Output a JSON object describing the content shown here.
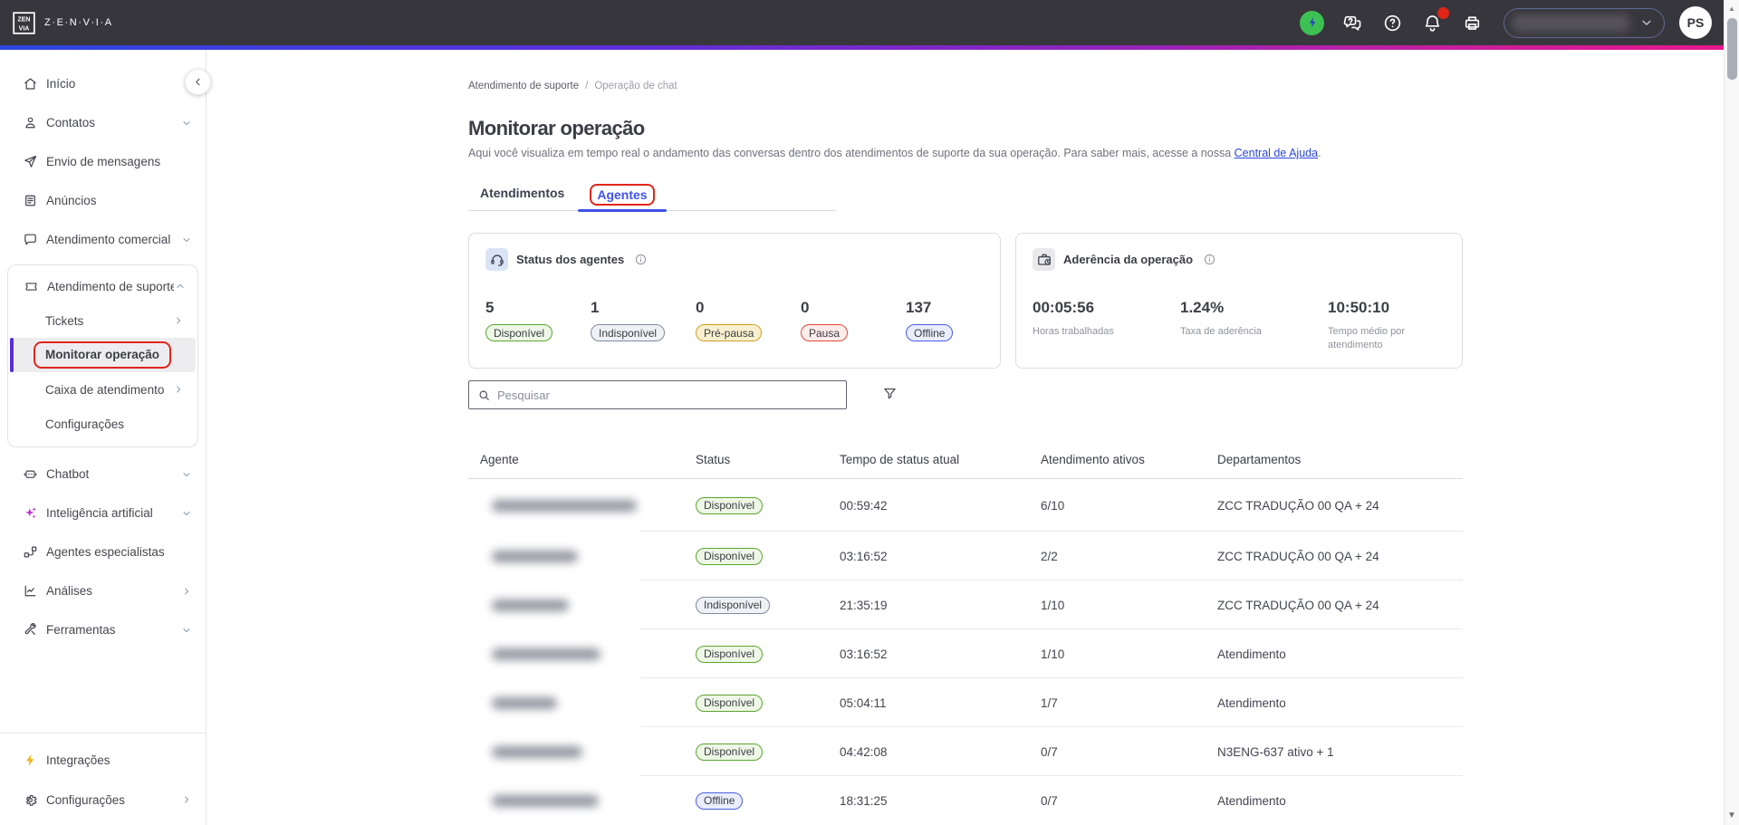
{
  "colors": {
    "accent_blue": "#4053e8",
    "annotation_red": "#e0261a",
    "header_bg": "#38363d",
    "active_item_bar": "#5b2fd8",
    "gradient": [
      "#2b46df",
      "#5b2fd8",
      "#8d24bf",
      "#c31e9e",
      "#e8188a"
    ],
    "status_circle_green": "#3ec153",
    "pill_variants": {
      "available": {
        "border": "#5aa630",
        "bg": "#eef7e7"
      },
      "unavailable": {
        "border": "#7e8aa0",
        "bg": "#eff1f5"
      },
      "prepause": {
        "border": "#d19f27",
        "bg": "#faf0cf"
      },
      "pause": {
        "border": "#e04b3c",
        "bg": "#fdecea"
      },
      "offline": {
        "border": "#4a5fe0",
        "bg": "#e9edfc"
      }
    }
  },
  "header": {
    "logo_text": "Z·E·N·V·I·A",
    "avatar_initials": "PS",
    "account_selector_redacted": true
  },
  "sidebar": {
    "items": [
      {
        "key": "inicio",
        "label": "Início",
        "icon": "home"
      },
      {
        "key": "contatos",
        "label": "Contatos",
        "icon": "contacts",
        "chevron": "down"
      },
      {
        "key": "envio-de-mensagens",
        "label": "Envio de mensagens",
        "icon": "send"
      },
      {
        "key": "anuncios",
        "label": "Anúncios",
        "icon": "announcements"
      },
      {
        "key": "atendimento-comercial",
        "label": "Atendimento comercial",
        "icon": "chat",
        "chevron": "down"
      },
      {
        "key": "atendimento-de-suporte",
        "label": "Atendimento de suporte",
        "icon": "ticket",
        "chevron": "up",
        "expanded": true,
        "children": [
          {
            "key": "tickets",
            "label": "Tickets",
            "chevron": "right"
          },
          {
            "key": "monitorar-operacao",
            "label": "Monitorar operação",
            "active": true,
            "annotated": true
          },
          {
            "key": "caixa-de-atendimento",
            "label": "Caixa de atendimento",
            "chevron": "right"
          },
          {
            "key": "configuracoes-suporte",
            "label": "Configurações"
          }
        ]
      },
      {
        "key": "chatbot",
        "label": "Chatbot",
        "icon": "chatbot",
        "chevron": "down"
      },
      {
        "key": "inteligencia-artificial",
        "label": "Inteligência artificial",
        "icon": "sparkles",
        "icon_color": "magenta",
        "chevron": "down"
      },
      {
        "key": "agentes-especialistas",
        "label": "Agentes especialistas",
        "icon": "flow"
      },
      {
        "key": "analises",
        "label": "Análises",
        "icon": "analytics",
        "chevron": "right"
      },
      {
        "key": "ferramentas",
        "label": "Ferramentas",
        "icon": "tools",
        "chevron": "down"
      }
    ],
    "footer_items": [
      {
        "key": "integracoes",
        "label": "Integrações",
        "icon": "bolt",
        "icon_color": "yellow"
      },
      {
        "key": "configuracoes",
        "label": "Configurações",
        "icon": "gear",
        "chevron": "right"
      }
    ]
  },
  "breadcrumb": {
    "items": [
      "Atendimento de suporte",
      "Operação de chat"
    ],
    "separator": "/"
  },
  "page": {
    "title": "Monitorar operação",
    "subtitle_before_link": "Aqui você visualiza em tempo real o andamento das conversas dentro dos atendimentos de suporte da sua operação. Para saber mais, acesse a nossa ",
    "subtitle_link": "Central de Ajuda",
    "subtitle_after_link": "."
  },
  "tabs": [
    {
      "label": "Atendimentos",
      "active": false
    },
    {
      "label": "Agentes",
      "active": true,
      "annotated": true
    }
  ],
  "agent_status_card": {
    "title": "Status dos agentes",
    "stats": [
      {
        "value": "5",
        "label": "Disponível",
        "variant": "available"
      },
      {
        "value": "1",
        "label": "Indisponível",
        "variant": "unavailable"
      },
      {
        "value": "0",
        "label": "Pré-pausa",
        "variant": "prepause"
      },
      {
        "value": "0",
        "label": "Pausa",
        "variant": "pause"
      },
      {
        "value": "137",
        "label": "Offline",
        "variant": "offline"
      }
    ]
  },
  "adherence_card": {
    "title": "Aderência da operação",
    "metrics": [
      {
        "value": "00:05:56",
        "label": "Horas trabalhadas"
      },
      {
        "value": "1.24%",
        "label": "Taxa de aderência"
      },
      {
        "value": "10:50:10",
        "label": "Tempo médio por atendimento"
      }
    ]
  },
  "search": {
    "placeholder": "Pesquisar"
  },
  "table": {
    "headers": [
      "Agente",
      "Status",
      "Tempo de status atual",
      "Atendimento ativos",
      "Departamentos"
    ],
    "rows": [
      {
        "agent_redacted": true,
        "name_blur_width": 160,
        "status": "Disponível",
        "variant": "available",
        "status_time": "00:59:42",
        "active_chats": "6/10",
        "departments": "ZCC TRADUÇÃO 00 QA + 24"
      },
      {
        "agent_redacted": true,
        "name_blur_width": 95,
        "status": "Disponível",
        "variant": "available",
        "status_time": "03:16:52",
        "active_chats": "2/2",
        "departments": "ZCC TRADUÇÃO 00 QA + 24"
      },
      {
        "agent_redacted": true,
        "name_blur_width": 85,
        "status": "Indisponível",
        "variant": "unavailable",
        "status_time": "21:35:19",
        "active_chats": "1/10",
        "departments": "ZCC TRADUÇÃO 00 QA + 24"
      },
      {
        "agent_redacted": true,
        "name_blur_width": 120,
        "status": "Disponível",
        "variant": "available",
        "status_time": "03:16:52",
        "active_chats": "1/10",
        "departments": "Atendimento"
      },
      {
        "agent_redacted": true,
        "name_blur_width": 72,
        "status": "Disponível",
        "variant": "available",
        "status_time": "05:04:11",
        "active_chats": "1/7",
        "departments": "Atendimento"
      },
      {
        "agent_redacted": true,
        "name_blur_width": 100,
        "status": "Disponível",
        "variant": "available",
        "status_time": "04:42:08",
        "active_chats": "0/7",
        "departments": "N3ENG-637 ativo + 1"
      },
      {
        "agent_redacted": true,
        "name_blur_width": 118,
        "status": "Offline",
        "variant": "offline",
        "status_time": "18:31:25",
        "active_chats": "0/7",
        "departments": "Atendimento"
      }
    ]
  }
}
